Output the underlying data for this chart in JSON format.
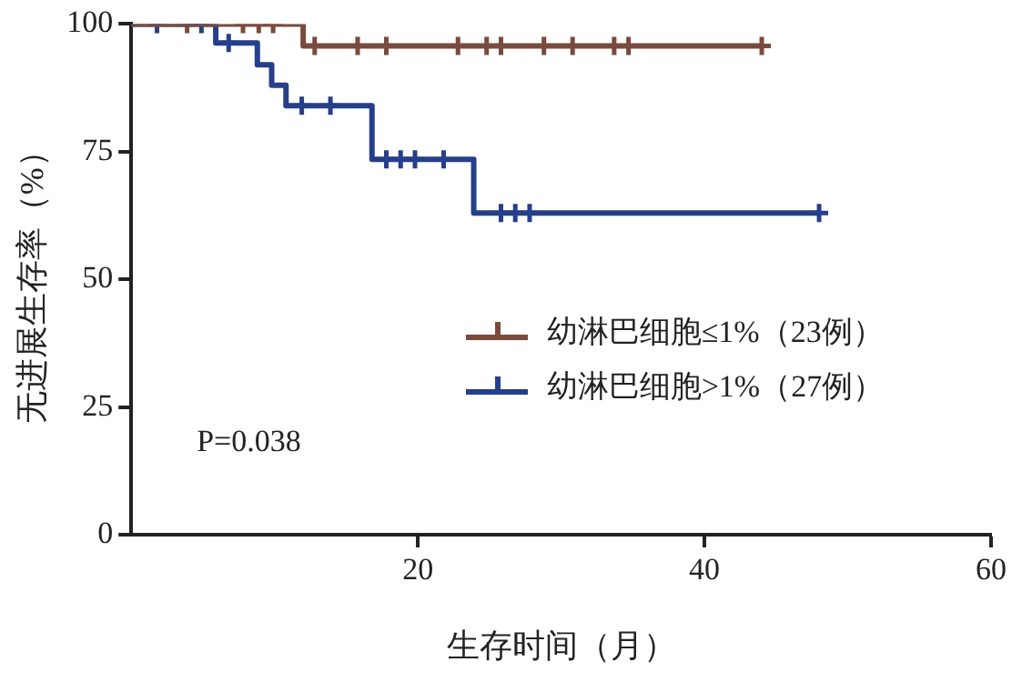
{
  "chart_data": {
    "type": "step",
    "xlabel": "生存时间（月）",
    "ylabel": "无进展生存率（%）",
    "xlim": [
      0,
      60
    ],
    "xticks": [
      20,
      40,
      60
    ],
    "ylim": [
      0,
      100
    ],
    "yticks": [
      0,
      25,
      50,
      75,
      100
    ],
    "grid": false,
    "legend": "right",
    "annotations": [
      "P=0.038"
    ],
    "series": [
      {
        "name": "幼淋巴细胞≤1%（23例）",
        "color": "#7b4a3a",
        "x": [
          0,
          12,
          44
        ],
        "values": [
          100,
          95.7,
          95.7
        ]
      },
      {
        "name": "幼淋巴细胞>1%（27例）",
        "color": "#233f8e",
        "x": [
          0,
          5.9,
          8.8,
          9.8,
          10.8,
          16.8,
          23.9,
          48
        ],
        "values": [
          100,
          96.3,
          92,
          88,
          84,
          73.5,
          63,
          63
        ]
      },
      {
        "type": "scatter",
        "marker": "cross",
        "color": "#7b4a3a",
        "x": [
          3.9,
          7.8,
          8.9,
          9.9,
          12.8,
          15.8,
          17.8,
          22.8,
          24.8,
          25.8,
          28.8,
          30.8,
          33.7,
          34.7,
          44
        ],
        "values": [
          100,
          100,
          100,
          100,
          95.7,
          95.7,
          95.7,
          95.7,
          95.7,
          95.7,
          95.7,
          95.7,
          95.7,
          95.7,
          95.7
        ]
      },
      {
        "type": "scatter",
        "marker": "cross",
        "color": "#233f8e",
        "x": [
          1.8,
          4.9,
          6.8,
          11.9,
          13.9,
          17.8,
          18.8,
          19.8,
          21.8,
          25.8,
          26.8,
          27.8,
          48
        ],
        "values": [
          100,
          100,
          96.3,
          84,
          84,
          73.5,
          73.5,
          73.5,
          73.5,
          63,
          63,
          63,
          63
        ]
      }
    ]
  }
}
